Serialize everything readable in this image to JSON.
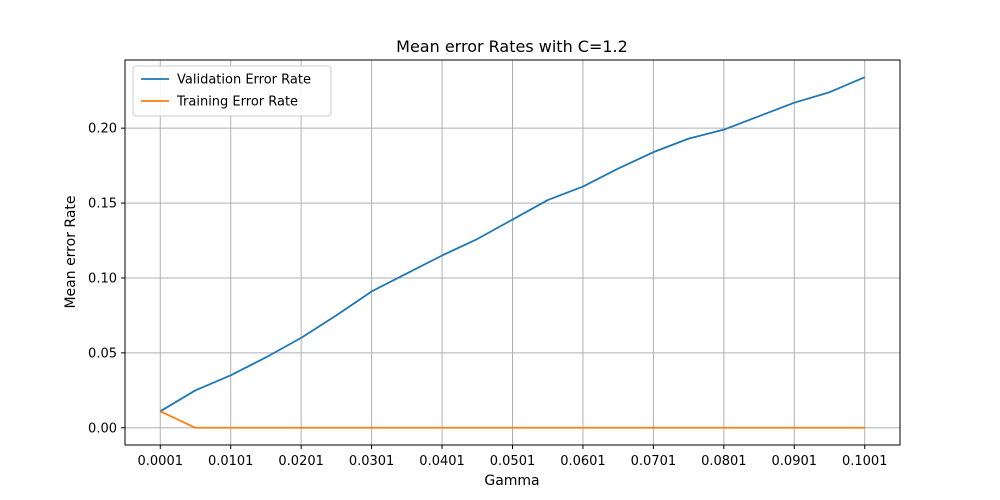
{
  "chart_data": {
    "type": "line",
    "title": "Mean error Rates with C=1.2",
    "xlabel": "Gamma",
    "ylabel": "Mean error Rate",
    "x": [
      0.0001,
      0.0051,
      0.0101,
      0.0151,
      0.0201,
      0.0251,
      0.0301,
      0.0351,
      0.0401,
      0.0451,
      0.0501,
      0.0551,
      0.0601,
      0.0651,
      0.0701,
      0.0751,
      0.0801,
      0.0851,
      0.0901,
      0.0951,
      0.1001
    ],
    "xticks": [
      "0.0001",
      "0.0101",
      "0.0201",
      "0.0301",
      "0.0401",
      "0.0501",
      "0.0601",
      "0.0701",
      "0.0801",
      "0.0901",
      "0.1001"
    ],
    "yticks": [
      "0.00",
      "0.05",
      "0.10",
      "0.15",
      "0.20"
    ],
    "xlim": [
      -0.004905,
      0.105105
    ],
    "ylim": [
      -0.0115,
      0.2455
    ],
    "grid": true,
    "legend_position": "top-left",
    "series": [
      {
        "name": "Validation Error Rate",
        "color": "#1f77b4",
        "values": [
          0.011,
          0.025,
          0.035,
          0.047,
          0.06,
          0.075,
          0.091,
          0.103,
          0.115,
          0.126,
          0.139,
          0.152,
          0.161,
          0.173,
          0.184,
          0.193,
          0.199,
          0.208,
          0.217,
          0.224,
          0.234
        ]
      },
      {
        "name": "Training Error Rate",
        "color": "#ff7f0e",
        "values": [
          0.011,
          0.0,
          0.0,
          0.0,
          0.0,
          0.0,
          0.0,
          0.0,
          0.0,
          0.0,
          0.0,
          0.0,
          0.0,
          0.0,
          0.0,
          0.0,
          0.0,
          0.0,
          0.0,
          0.0,
          0.0
        ]
      }
    ]
  }
}
